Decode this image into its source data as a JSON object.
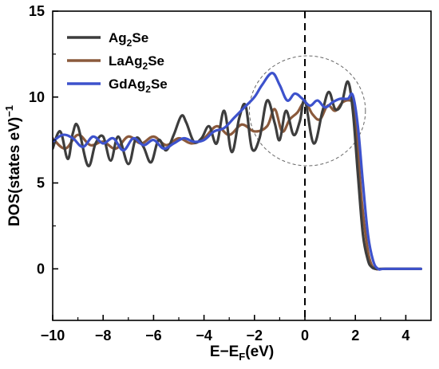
{
  "chart_data": {
    "type": "line",
    "xlabel": "E−E",
    "xlabel_sub": "F",
    "xlabel_unit": "(eV)",
    "ylabel": "DOS(states eV)",
    "ylabel_sup": "−1",
    "xlim": [
      -10,
      5
    ],
    "ylim": [
      -3,
      15
    ],
    "xticks": [
      -10,
      -8,
      -6,
      -4,
      -2,
      0,
      2,
      4
    ],
    "yticks": [
      0,
      5,
      10,
      15
    ],
    "legend_position": "top-left",
    "grid": false,
    "annotations": {
      "fermi_level_dashed_line_x": 0,
      "dashed_ellipse": {
        "cx": 0.1,
        "cy": 9.2,
        "rx": 2.3,
        "ry": 3.2
      }
    },
    "series": [
      {
        "name": "Ag",
        "name_sub": "2",
        "name_suffix": "Se",
        "color": "#3d3d3d",
        "x": [
          -10,
          -9.7,
          -9.4,
          -9.2,
          -9.0,
          -8.6,
          -8.3,
          -8.0,
          -7.7,
          -7.4,
          -7.0,
          -6.7,
          -6.4,
          -6.1,
          -5.8,
          -5.5,
          -5.2,
          -4.9,
          -4.7,
          -4.4,
          -4.1,
          -3.8,
          -3.5,
          -3.2,
          -2.9,
          -2.6,
          -2.35,
          -2.1,
          -1.8,
          -1.5,
          -1.2,
          -1.0,
          -0.75,
          -0.45,
          -0.2,
          0.0,
          0.35,
          0.7,
          0.95,
          1.2,
          1.45,
          1.7,
          1.9,
          2.1,
          2.3,
          2.5,
          2.65,
          2.8,
          3.0,
          3.3,
          4.6
        ],
        "y": [
          7.0,
          8.0,
          6.4,
          7.9,
          8.3,
          6.0,
          7.3,
          7.7,
          6.3,
          7.7,
          6.1,
          7.6,
          7.1,
          6.2,
          7.5,
          6.9,
          7.8,
          8.9,
          8.5,
          7.4,
          7.6,
          8.3,
          7.3,
          9.2,
          6.8,
          8.8,
          9.5,
          7.0,
          7.6,
          9.8,
          8.5,
          7.5,
          9.2,
          7.8,
          8.6,
          9.8,
          7.3,
          9.2,
          10.3,
          9.3,
          9.6,
          10.9,
          9.2,
          5.5,
          2.0,
          0.5,
          0.1,
          0.0,
          0.0,
          0.0,
          0.0
        ]
      },
      {
        "name": "LaAg",
        "name_sub": "2",
        "name_suffix": "Se",
        "color": "#8b5a3c",
        "x": [
          -10,
          -9.5,
          -9.0,
          -8.5,
          -8.0,
          -7.5,
          -7.0,
          -6.5,
          -6.0,
          -5.5,
          -5.0,
          -4.5,
          -4.0,
          -3.5,
          -3.0,
          -2.5,
          -2.0,
          -1.5,
          -1.2,
          -0.9,
          -0.6,
          -0.3,
          0.0,
          0.3,
          0.6,
          0.9,
          1.2,
          1.5,
          1.8,
          1.95,
          2.1,
          2.25,
          2.45,
          2.6,
          2.8,
          3.2,
          4.6
        ],
        "y": [
          7.6,
          7.0,
          7.8,
          7.2,
          7.4,
          7.0,
          7.7,
          7.3,
          7.7,
          7.2,
          7.6,
          7.3,
          7.6,
          8.3,
          7.8,
          8.4,
          8.0,
          8.3,
          9.3,
          8.0,
          8.7,
          9.1,
          9.7,
          9.0,
          8.7,
          9.5,
          9.2,
          9.7,
          9.8,
          9.5,
          7.0,
          4.0,
          1.5,
          0.4,
          0.0,
          0.0,
          0.0
        ]
      },
      {
        "name": "GdAg",
        "name_sub": "2",
        "name_suffix": "Se",
        "color": "#3d52cc",
        "x": [
          -10,
          -9.6,
          -9.2,
          -8.8,
          -8.4,
          -8.0,
          -7.6,
          -7.2,
          -6.8,
          -6.4,
          -6.0,
          -5.6,
          -5.2,
          -4.8,
          -4.4,
          -4.0,
          -3.6,
          -3.2,
          -2.8,
          -2.4,
          -2.0,
          -1.7,
          -1.3,
          -1.0,
          -0.7,
          -0.4,
          -0.1,
          0.2,
          0.5,
          0.8,
          1.1,
          1.4,
          1.7,
          1.9,
          2.1,
          2.3,
          2.5,
          2.7,
          2.9,
          3.2,
          4.6
        ],
        "y": [
          7.4,
          7.8,
          7.6,
          7.1,
          7.7,
          7.3,
          7.6,
          6.9,
          7.6,
          7.2,
          7.5,
          7.0,
          7.3,
          7.6,
          7.4,
          7.5,
          8.0,
          8.2,
          8.8,
          9.4,
          10.0,
          10.7,
          11.4,
          10.7,
          9.8,
          10.2,
          9.9,
          9.5,
          9.8,
          9.4,
          9.7,
          9.9,
          9.9,
          10.1,
          8.3,
          5.0,
          2.0,
          0.5,
          0.0,
          0.0,
          0.0
        ]
      }
    ]
  }
}
